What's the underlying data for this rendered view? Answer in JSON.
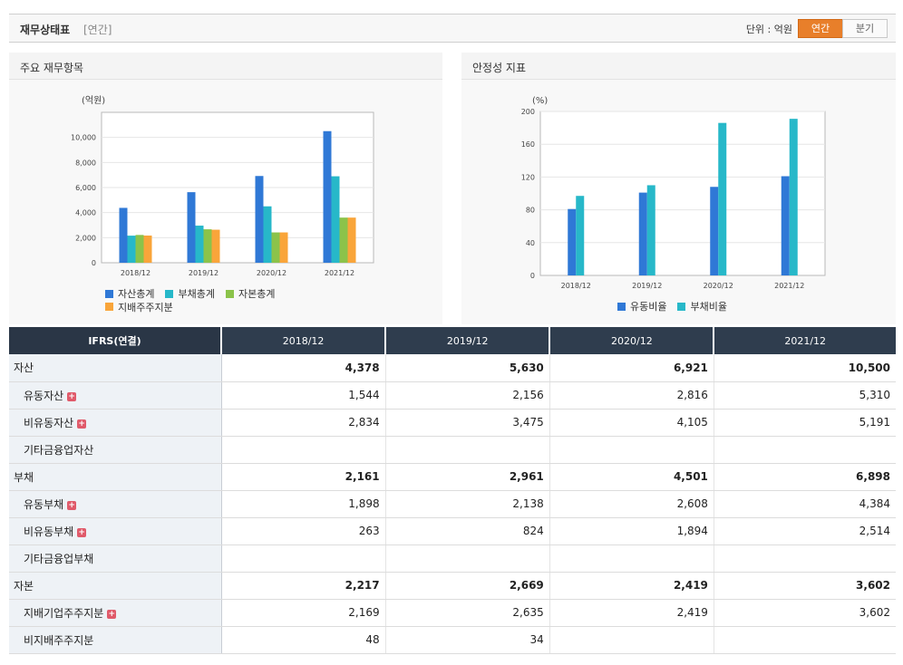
{
  "header": {
    "title": "재무상태표",
    "subtitle": "[연간]",
    "unit_label": "단위 : 억원",
    "toggle_annual": "연간",
    "toggle_quarter": "분기"
  },
  "left_panel": {
    "title": "주요 재무항목"
  },
  "right_panel": {
    "title": "안정성 지표"
  },
  "chart_data": [
    {
      "type": "bar",
      "title": "주요 재무항목",
      "ylabel": "(억원)",
      "categories": [
        "2018/12",
        "2019/12",
        "2020/12",
        "2021/12"
      ],
      "ylim": [
        0,
        12000
      ],
      "yticks": [
        0,
        2000,
        4000,
        6000,
        8000,
        10000
      ],
      "ytick_labels": [
        "0",
        "2,000",
        "4,000",
        "6,000",
        "8,000",
        "10,000"
      ],
      "grid": true,
      "legend_position": "bottom",
      "series": [
        {
          "name": "자산총계",
          "color": "#2f78d6",
          "values": [
            4378,
            5630,
            6921,
            10500
          ]
        },
        {
          "name": "부채총계",
          "color": "#27b8c9",
          "values": [
            2161,
            2961,
            4501,
            6898
          ]
        },
        {
          "name": "자본총계",
          "color": "#8bc34a",
          "values": [
            2217,
            2669,
            2419,
            3602
          ]
        },
        {
          "name": "지배주주지분",
          "color": "#f9a53a",
          "values": [
            2169,
            2635,
            2419,
            3602
          ]
        }
      ]
    },
    {
      "type": "bar",
      "title": "안정성 지표",
      "ylabel": "(%)",
      "categories": [
        "2018/12",
        "2019/12",
        "2020/12",
        "2021/12"
      ],
      "ylim": [
        0,
        200
      ],
      "yticks": [
        0,
        40,
        80,
        120,
        160,
        200
      ],
      "ytick_labels": [
        "0",
        "40",
        "80",
        "120",
        "160",
        "200"
      ],
      "grid": true,
      "legend_position": "bottom",
      "series": [
        {
          "name": "유동비율",
          "color": "#2f78d6",
          "values": [
            81,
            101,
            108,
            121
          ]
        },
        {
          "name": "부채비율",
          "color": "#27b8c9",
          "values": [
            97,
            110,
            186,
            191
          ]
        }
      ]
    }
  ],
  "table": {
    "header_label": "IFRS(연결)",
    "columns": [
      "2018/12",
      "2019/12",
      "2020/12",
      "2021/12"
    ],
    "rows": [
      {
        "label": "자산",
        "level": 0,
        "expandable": false,
        "values": [
          "4,378",
          "5,630",
          "6,921",
          "10,500"
        ]
      },
      {
        "label": "유동자산",
        "level": 1,
        "expandable": true,
        "values": [
          "1,544",
          "2,156",
          "2,816",
          "5,310"
        ]
      },
      {
        "label": "비유동자산",
        "level": 1,
        "expandable": true,
        "values": [
          "2,834",
          "3,475",
          "4,105",
          "5,191"
        ]
      },
      {
        "label": "기타금융업자산",
        "level": 1,
        "expandable": false,
        "values": [
          "",
          "",
          "",
          ""
        ]
      },
      {
        "label": "부채",
        "level": 0,
        "expandable": false,
        "values": [
          "2,161",
          "2,961",
          "4,501",
          "6,898"
        ]
      },
      {
        "label": "유동부채",
        "level": 1,
        "expandable": true,
        "values": [
          "1,898",
          "2,138",
          "2,608",
          "4,384"
        ]
      },
      {
        "label": "비유동부채",
        "level": 1,
        "expandable": true,
        "values": [
          "263",
          "824",
          "1,894",
          "2,514"
        ]
      },
      {
        "label": "기타금융업부채",
        "level": 1,
        "expandable": false,
        "values": [
          "",
          "",
          "",
          ""
        ]
      },
      {
        "label": "자본",
        "level": 0,
        "expandable": false,
        "values": [
          "2,217",
          "2,669",
          "2,419",
          "3,602"
        ]
      },
      {
        "label": "지배기업주주지분",
        "level": 1,
        "expandable": true,
        "values": [
          "2,169",
          "2,635",
          "2,419",
          "3,602"
        ]
      },
      {
        "label": "비지배주주지분",
        "level": 1,
        "expandable": false,
        "values": [
          "48",
          "34",
          "",
          ""
        ]
      }
    ],
    "expand_symbol": "+"
  }
}
